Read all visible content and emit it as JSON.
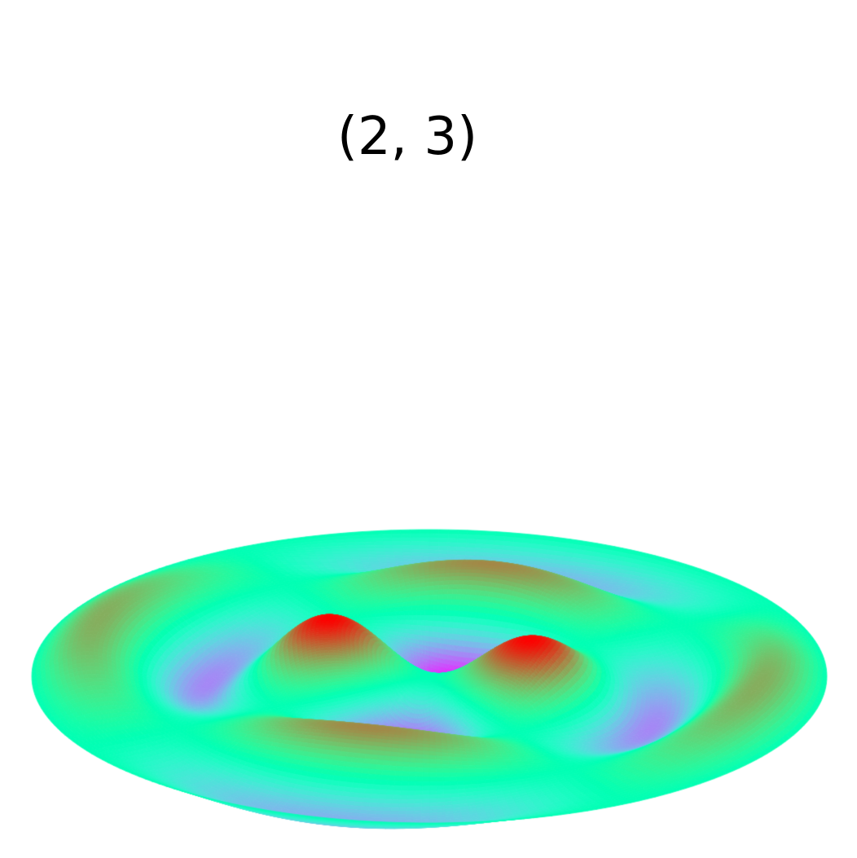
{
  "chart_data": {
    "type": "surface",
    "title": "(2, 3)",
    "colormap": "rainbow",
    "domain": "unit-disk",
    "mode": {
      "m": 2,
      "n": 3
    },
    "z_range": [
      -1,
      1
    ],
    "grid": false,
    "axes_visible": false,
    "colors": {
      "background": "#ffffff",
      "high": "#ff1a00",
      "mid": "#80ffb4",
      "low": "#7f00ff"
    }
  }
}
